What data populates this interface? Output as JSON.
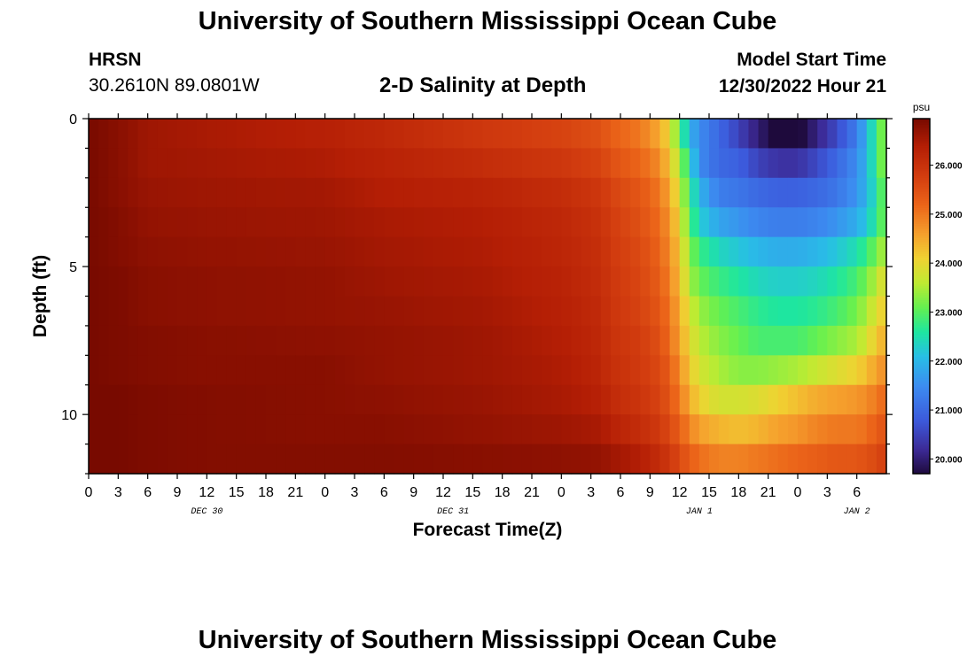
{
  "header": {
    "title": "University of Southern Mississippi Ocean Cube",
    "station_id": "HRSN",
    "station_coords": "30.2610N  89.0801W",
    "plot_title": "2-D Salinity at Depth",
    "model_start_label": "Model Start Time",
    "model_start_time": "12/30/2022 Hour 21"
  },
  "footer": {
    "title": "University of Southern Mississippi Ocean Cube"
  },
  "chart_data": {
    "type": "heatmap",
    "title": "2-D Salinity at Depth",
    "xlabel": "Forecast Time(Z)",
    "ylabel": "Depth (ft)",
    "x_range_hours": [
      0,
      81
    ],
    "x_tick_labels": [
      "0",
      "3",
      "6",
      "9",
      "12",
      "15",
      "18",
      "21",
      "0",
      "3",
      "6",
      "9",
      "12",
      "15",
      "18",
      "21",
      "0",
      "3",
      "6",
      "9",
      "12",
      "15",
      "18",
      "21",
      "0",
      "3",
      "6"
    ],
    "date_labels": [
      {
        "text": "DEC 30",
        "hour": 12
      },
      {
        "text": "DEC 31",
        "hour": 37
      },
      {
        "text": "JAN 1",
        "hour": 62
      },
      {
        "text": "JAN 2",
        "hour": 78
      }
    ],
    "y_range_ft": [
      0,
      12
    ],
    "y_tick_labels": [
      "0",
      "5",
      "10"
    ],
    "y_tick_values": [
      0,
      5,
      10
    ],
    "depth_levels_ft": [
      0.5,
      1.5,
      2.5,
      3.5,
      4.5,
      5.5,
      6.5,
      7.5,
      8.5,
      9.5,
      10.5,
      11.5
    ],
    "time_keypoints_hours": [
      0,
      3,
      6,
      12,
      24,
      30,
      40,
      48,
      52,
      53,
      56,
      58,
      59,
      60,
      61,
      62,
      64,
      66,
      68,
      70,
      72,
      74,
      76,
      78,
      79,
      80,
      81
    ],
    "salinity_keypoints_psu": [
      [
        26.95,
        26.8,
        26.6,
        26.5,
        26.35,
        26.2,
        25.9,
        25.7,
        25.5,
        25.3,
        25.0,
        24.5,
        24.0,
        23.0,
        22.0,
        21.5,
        21.0,
        20.5,
        20.0,
        19.6,
        19.6,
        20.1,
        20.6,
        21.3,
        22.0,
        22.8,
        23.5
      ],
      [
        26.95,
        26.8,
        26.6,
        26.55,
        26.45,
        26.3,
        26.1,
        25.9,
        25.7,
        25.5,
        25.2,
        24.8,
        24.2,
        23.5,
        22.5,
        21.5,
        21.0,
        20.9,
        20.5,
        20.3,
        20.3,
        20.6,
        21.0,
        21.5,
        22.0,
        22.8,
        23.5
      ],
      [
        26.95,
        26.8,
        26.65,
        26.6,
        26.55,
        26.4,
        26.3,
        26.1,
        25.9,
        25.7,
        25.4,
        25.0,
        24.5,
        23.8,
        22.8,
        22.0,
        21.3,
        21.2,
        21.0,
        20.9,
        20.9,
        21.0,
        21.2,
        21.6,
        22.0,
        22.6,
        23.3
      ],
      [
        26.95,
        26.85,
        26.7,
        26.65,
        26.6,
        26.5,
        26.4,
        26.2,
        26.0,
        25.8,
        25.5,
        25.1,
        24.7,
        24.0,
        23.0,
        22.3,
        21.8,
        21.6,
        21.4,
        21.3,
        21.3,
        21.4,
        21.6,
        21.9,
        22.2,
        22.7,
        23.3
      ],
      [
        26.95,
        26.85,
        26.75,
        26.7,
        26.65,
        26.55,
        26.45,
        26.25,
        26.05,
        25.85,
        25.6,
        25.2,
        24.8,
        24.2,
        23.3,
        22.8,
        22.4,
        22.2,
        22.0,
        21.9,
        21.9,
        22.0,
        22.2,
        22.5,
        22.8,
        23.2,
        23.6
      ],
      [
        26.95,
        26.9,
        26.8,
        26.75,
        26.7,
        26.6,
        26.5,
        26.3,
        26.1,
        25.9,
        25.65,
        25.3,
        24.9,
        24.3,
        23.5,
        23.1,
        22.8,
        22.6,
        22.4,
        22.3,
        22.3,
        22.4,
        22.6,
        22.9,
        23.2,
        23.6,
        24.0
      ],
      [
        26.95,
        26.9,
        26.8,
        26.75,
        26.7,
        26.65,
        26.55,
        26.35,
        26.15,
        25.95,
        25.7,
        25.4,
        25.0,
        24.5,
        23.8,
        23.4,
        23.1,
        22.9,
        22.7,
        22.6,
        22.6,
        22.7,
        22.9,
        23.2,
        23.5,
        23.9,
        24.2
      ],
      [
        26.95,
        26.9,
        26.85,
        26.8,
        26.75,
        26.7,
        26.6,
        26.4,
        26.2,
        26.0,
        25.8,
        25.5,
        25.1,
        24.6,
        24.0,
        23.6,
        23.3,
        23.1,
        22.9,
        22.9,
        22.9,
        23.1,
        23.3,
        23.5,
        23.8,
        24.2,
        24.5
      ],
      [
        26.95,
        26.9,
        26.85,
        26.8,
        26.8,
        26.7,
        26.6,
        26.45,
        26.25,
        26.05,
        25.85,
        25.6,
        25.3,
        24.8,
        24.2,
        23.8,
        23.5,
        23.3,
        23.3,
        23.4,
        23.5,
        23.7,
        23.9,
        24.1,
        24.3,
        24.6,
        24.8
      ],
      [
        26.95,
        26.95,
        26.9,
        26.85,
        26.8,
        26.75,
        26.65,
        26.5,
        26.35,
        26.15,
        25.95,
        25.7,
        25.4,
        25.0,
        24.5,
        24.1,
        23.8,
        23.8,
        23.9,
        24.1,
        24.3,
        24.5,
        24.6,
        24.7,
        24.8,
        25.0,
        25.2
      ],
      [
        26.95,
        26.95,
        26.9,
        26.85,
        26.8,
        26.8,
        26.7,
        26.6,
        26.5,
        26.35,
        26.1,
        25.85,
        25.6,
        25.3,
        24.9,
        24.6,
        24.4,
        24.3,
        24.4,
        24.6,
        24.7,
        24.9,
        25.0,
        25.0,
        25.1,
        25.3,
        25.5
      ],
      [
        26.95,
        26.95,
        26.9,
        26.85,
        26.85,
        26.85,
        26.8,
        26.75,
        26.7,
        26.6,
        26.4,
        26.1,
        25.9,
        25.6,
        25.3,
        25.1,
        24.9,
        24.9,
        25.0,
        25.1,
        25.2,
        25.3,
        25.4,
        25.4,
        25.5,
        25.6,
        25.8
      ]
    ],
    "colorbar": {
      "unit": "psu",
      "min": 19.7,
      "max": 26.95,
      "tick_values": [
        20,
        21,
        22,
        23,
        24,
        25,
        26
      ],
      "tick_labels": [
        "20.000",
        "21.000",
        "22.000",
        "23.000",
        "24.000",
        "25.000",
        "26.000"
      ],
      "stops": [
        {
          "value": 19.7,
          "color": "#1e0a3c"
        },
        {
          "value": 20.2,
          "color": "#3c2a96"
        },
        {
          "value": 20.8,
          "color": "#3c5adc"
        },
        {
          "value": 21.5,
          "color": "#3c8cf0"
        },
        {
          "value": 22.1,
          "color": "#28bee6"
        },
        {
          "value": 22.6,
          "color": "#1ee6a0"
        },
        {
          "value": 23.1,
          "color": "#64f050"
        },
        {
          "value": 23.6,
          "color": "#beeb32"
        },
        {
          "value": 24.1,
          "color": "#f0d232"
        },
        {
          "value": 24.6,
          "color": "#f5a02d"
        },
        {
          "value": 25.2,
          "color": "#eb6419"
        },
        {
          "value": 25.8,
          "color": "#d23c0f"
        },
        {
          "value": 26.4,
          "color": "#b41e05"
        },
        {
          "value": 26.95,
          "color": "#780a00"
        }
      ]
    }
  }
}
